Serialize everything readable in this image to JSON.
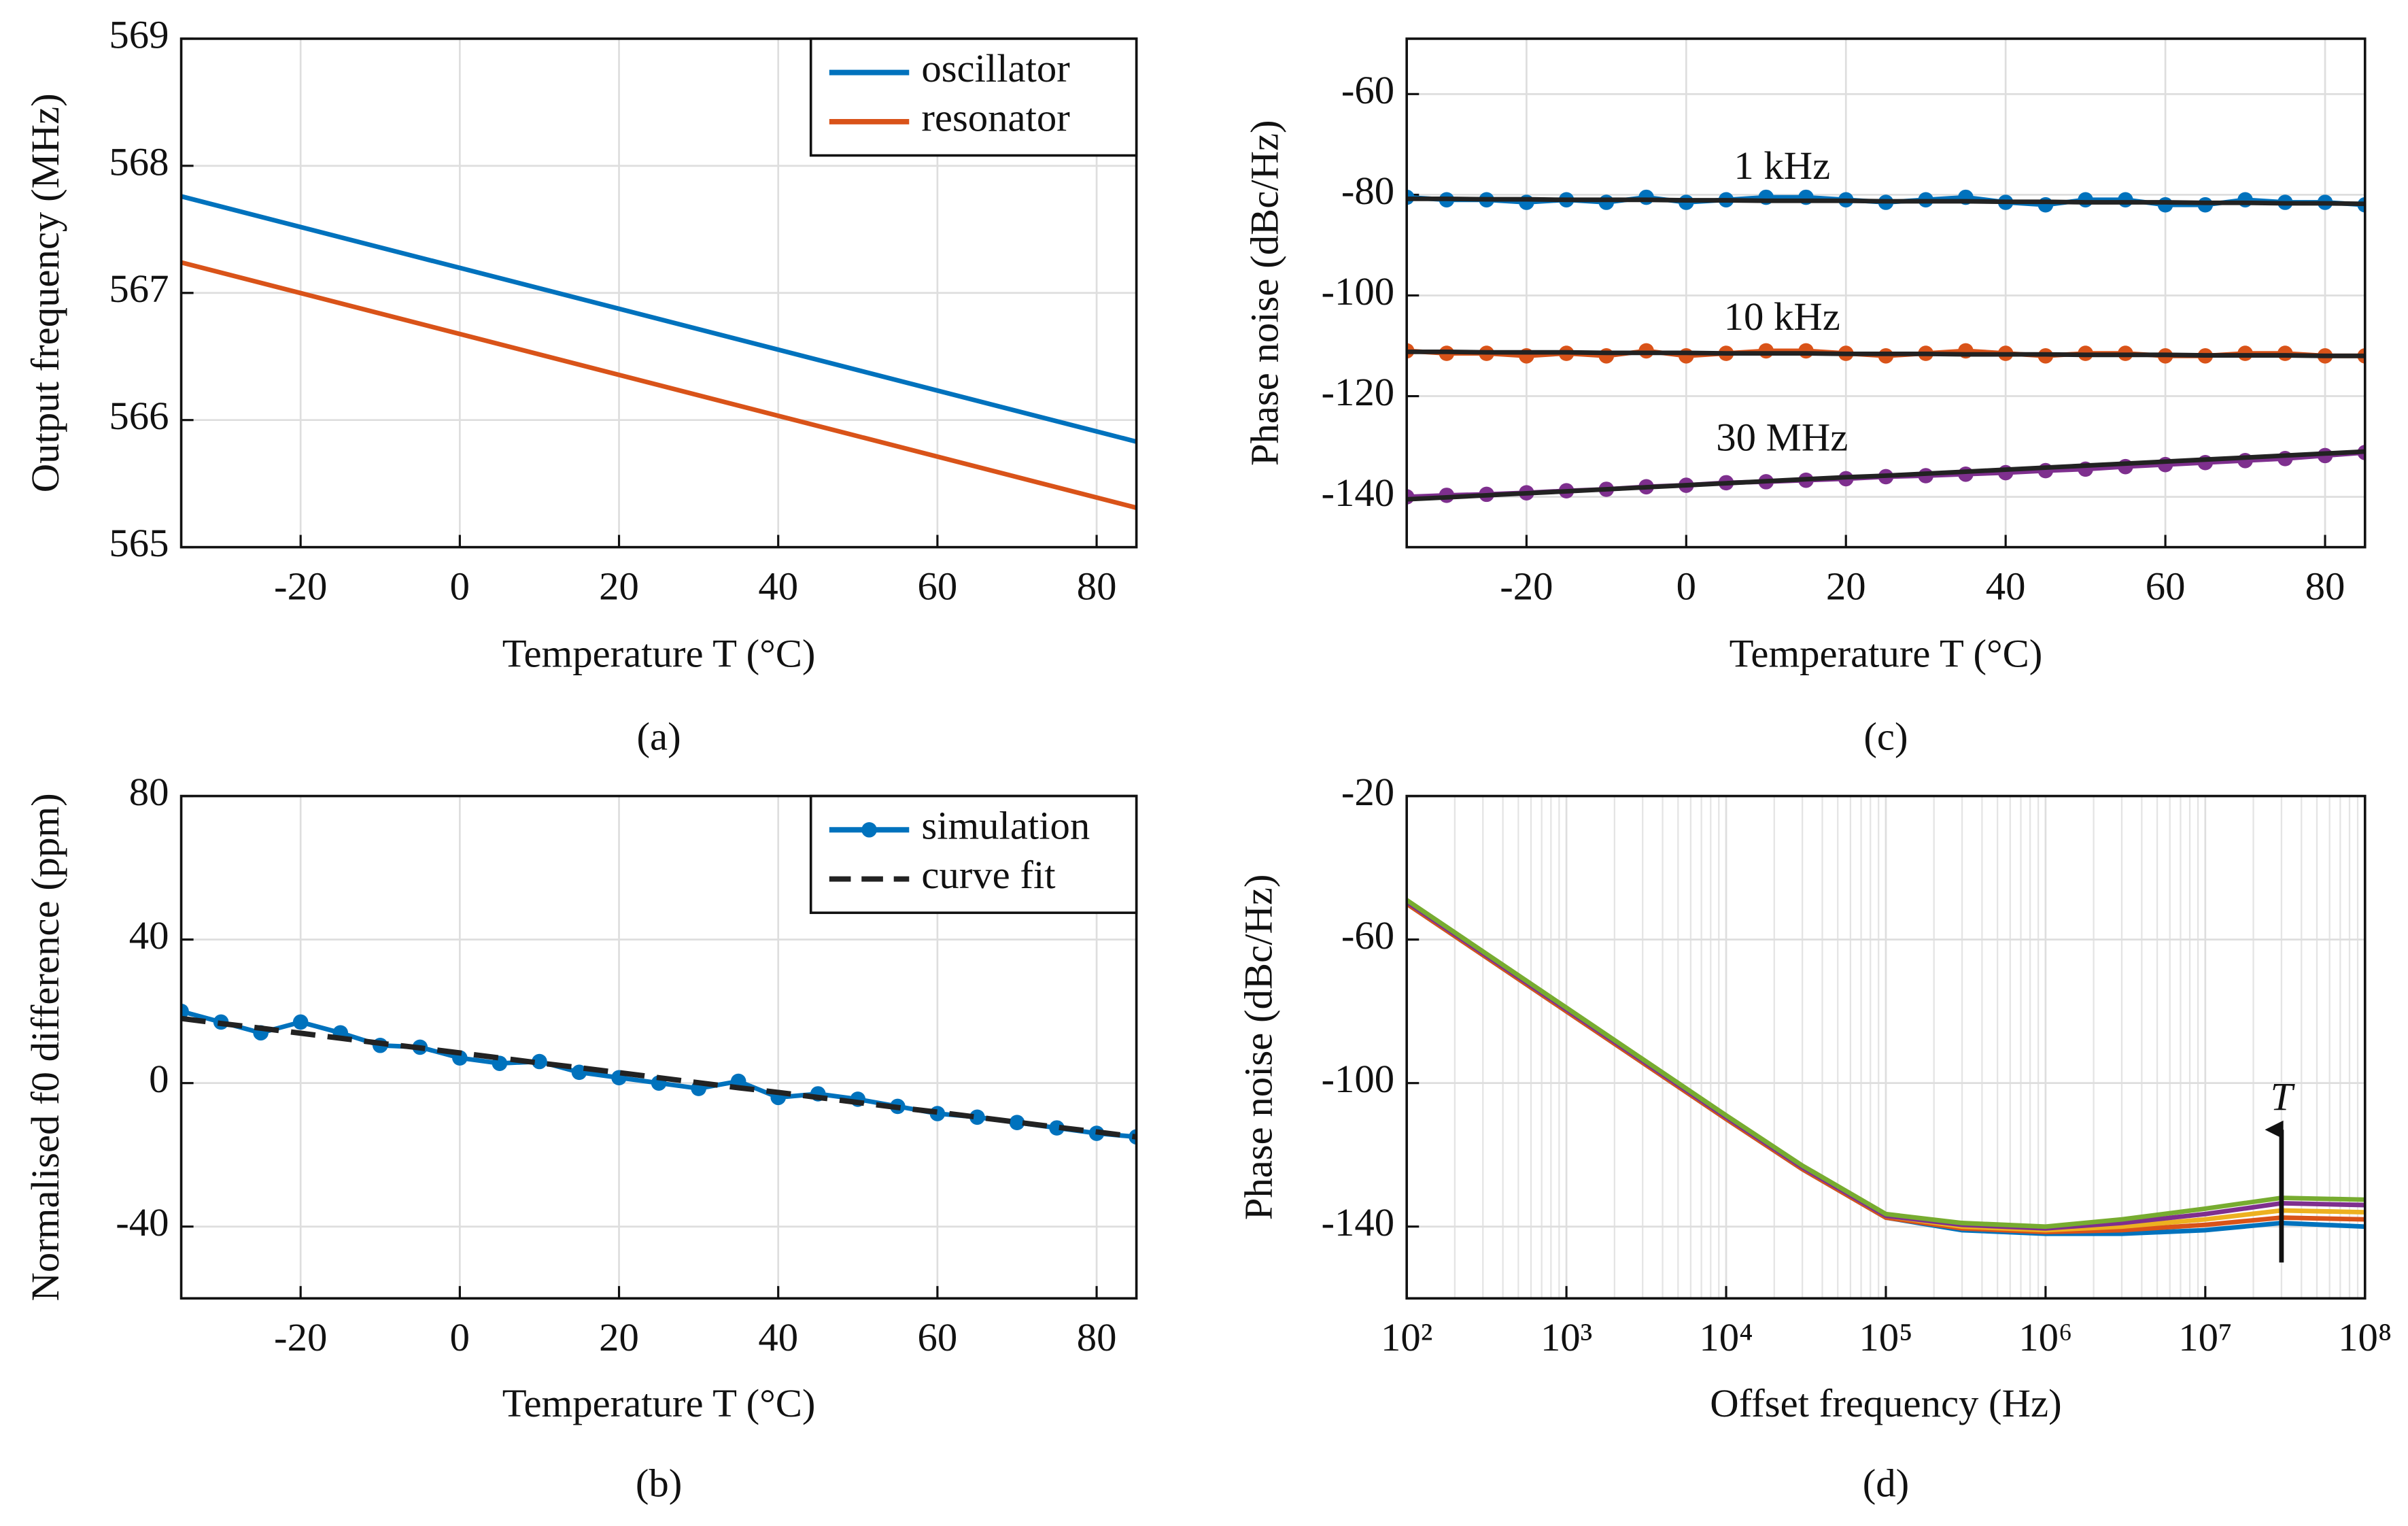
{
  "chart_data": [
    {
      "type": "line",
      "caption": "(a)",
      "x_label": "Temperature T (°C)",
      "y_label": "Output frequency (MHz)",
      "x": [
        -35,
        85
      ],
      "xlim": [
        -35,
        85
      ],
      "xticks": [
        -20,
        0,
        20,
        40,
        60,
        80
      ],
      "ylim": [
        565,
        569
      ],
      "yticks": [
        565,
        566,
        567,
        568,
        569
      ],
      "grid": true,
      "legend": "upper right",
      "series": [
        {
          "name": "oscillator",
          "color": "#0072bd",
          "values": [
            567.76,
            565.83
          ]
        },
        {
          "name": "resonator",
          "color": "#d95319",
          "values": [
            567.24,
            565.31
          ]
        }
      ]
    },
    {
      "type": "line",
      "caption": "(b)",
      "x_label": "Temperature T (°C)",
      "y_label": "Normalised f0 difference (ppm)",
      "x": [
        -35,
        -30,
        -25,
        -20,
        -15,
        -10,
        -5,
        0,
        5,
        10,
        15,
        20,
        25,
        30,
        35,
        40,
        45,
        50,
        55,
        60,
        65,
        70,
        75,
        80,
        85
      ],
      "xlim": [
        -35,
        85
      ],
      "xticks": [
        -20,
        0,
        20,
        40,
        60,
        80
      ],
      "ylim": [
        -60,
        80
      ],
      "yticks": [
        -40,
        0,
        40,
        80
      ],
      "grid": true,
      "legend": "upper right",
      "series": [
        {
          "name": "simulation",
          "color": "#0072bd",
          "marker": "o",
          "values": [
            20,
            17,
            14,
            17,
            14,
            10.5,
            10,
            7,
            5.5,
            6,
            3,
            1.5,
            0,
            -1.5,
            0.5,
            -4,
            -3,
            -4.5,
            -6.5,
            -8.5,
            -9.5,
            -11,
            -12.5,
            -14,
            -15
          ]
        },
        {
          "name": "curve fit",
          "color": "#222222",
          "dash": true,
          "values": [
            18,
            16.6,
            15.3,
            13.9,
            12.5,
            11.1,
            9.8,
            8.4,
            7,
            5.6,
            4.3,
            2.9,
            1.5,
            0.1,
            -1.3,
            -2.6,
            -4,
            -5.4,
            -6.8,
            -8.1,
            -9.5,
            -10.9,
            -12.3,
            -13.6,
            -15
          ]
        }
      ]
    },
    {
      "type": "line",
      "caption": "(c)",
      "x_label": "Temperature T (°C)",
      "y_label": "Phase noise (dBc/Hz)",
      "x": [
        -35,
        -30,
        -25,
        -20,
        -15,
        -10,
        -5,
        0,
        5,
        10,
        15,
        20,
        25,
        30,
        35,
        40,
        45,
        50,
        55,
        60,
        65,
        70,
        75,
        80,
        85
      ],
      "xlim": [
        -35,
        85
      ],
      "xticks": [
        -20,
        0,
        20,
        40,
        60,
        80
      ],
      "ylim": [
        -150,
        -49
      ],
      "yticks": [
        -140,
        -120,
        -100,
        -80,
        -60
      ],
      "grid": true,
      "series": [
        {
          "color": "#0072bd",
          "marker": "o",
          "values": [
            -80.5,
            -81,
            -81,
            -81.5,
            -81,
            -81.5,
            -80.5,
            -81.5,
            -81,
            -80.5,
            -80.5,
            -81,
            -81.5,
            -81,
            -80.5,
            -81.5,
            -82,
            -81,
            -81,
            -82,
            -82,
            -81,
            -81.5,
            -81.5,
            -82
          ]
        },
        {
          "color": "#d95319",
          "marker": "o",
          "values": [
            -111,
            -111.5,
            -111.5,
            -112,
            -111.5,
            -112,
            -111,
            -112,
            -111.5,
            -111,
            -111,
            -111.5,
            -112,
            -111.5,
            -111,
            -111.5,
            -112,
            -111.5,
            -111.5,
            -112,
            -112,
            -111.5,
            -111.5,
            -112,
            -112
          ]
        },
        {
          "color": "#7e2f8e",
          "marker": "o",
          "values": [
            -140,
            -139.7,
            -139.5,
            -139.2,
            -138.8,
            -138.5,
            -138,
            -137.7,
            -137.2,
            -137,
            -136.7,
            -136.4,
            -136,
            -135.8,
            -135.5,
            -135.2,
            -134.8,
            -134.5,
            -134,
            -133.6,
            -133.2,
            -132.8,
            -132.4,
            -131.8,
            -131.2
          ]
        },
        {
          "color": "#222222",
          "values": [
            -80.8,
            -80.8,
            -80.9,
            -80.9,
            -81,
            -81,
            -81,
            -81.1,
            -81.1,
            -81.2,
            -81.2,
            -81.2,
            -81.3,
            -81.3,
            -81.3,
            -81.4,
            -81.4,
            -81.5,
            -81.5,
            -81.5,
            -81.6,
            -81.6,
            -81.7,
            -81.7,
            -81.8
          ]
        },
        {
          "color": "#222222",
          "values": [
            -111.2,
            -111.2,
            -111.3,
            -111.3,
            -111.3,
            -111.4,
            -111.4,
            -111.4,
            -111.5,
            -111.5,
            -111.5,
            -111.6,
            -111.6,
            -111.6,
            -111.7,
            -111.7,
            -111.7,
            -111.8,
            -111.8,
            -111.8,
            -111.9,
            -111.9,
            -111.9,
            -112,
            -112
          ]
        },
        {
          "color": "#222222",
          "values": [
            -140.5,
            -140.1,
            -139.7,
            -139.3,
            -138.9,
            -138.5,
            -138.1,
            -137.7,
            -137.3,
            -136.9,
            -136.5,
            -136.1,
            -135.8,
            -135.4,
            -135,
            -134.6,
            -134.2,
            -133.8,
            -133.4,
            -133,
            -132.6,
            -132.2,
            -131.8,
            -131.4,
            -131
          ]
        }
      ],
      "annotations": [
        {
          "text": "1 kHz",
          "x": 12,
          "y": -75
        },
        {
          "text": "10 kHz",
          "x": 12,
          "y": -105
        },
        {
          "text": "30 MHz",
          "x": 12,
          "y": -129
        }
      ]
    },
    {
      "type": "line",
      "caption": "(d)",
      "x_label": "Offset frequency (Hz)",
      "y_label": "Phase noise (dBc/Hz)",
      "x": [
        100,
        1000,
        10000,
        30000,
        100000,
        300000,
        1000000,
        3000000,
        10000000,
        30000000,
        100000000
      ],
      "xlim": [
        100,
        100000000
      ],
      "xlog": true,
      "minor_grid": true,
      "xticks": [
        {
          "value": 100,
          "label": "10²"
        },
        {
          "value": 1000,
          "label": "10³"
        },
        {
          "value": 10000,
          "label": "10⁴"
        },
        {
          "value": 100000,
          "label": "10⁵"
        },
        {
          "value": 1000000,
          "label": "10⁶"
        },
        {
          "value": 10000000,
          "label": "10⁷"
        },
        {
          "value": 100000000,
          "label": "10⁸"
        }
      ],
      "ylim": [
        -160,
        -20
      ],
      "yticks": [
        -140,
        -100,
        -60,
        -20
      ],
      "grid": true,
      "series": [
        {
          "color": "#0072bd",
          "values": [
            -50,
            -80,
            -110,
            -124,
            -137.5,
            -141,
            -142,
            -142,
            -141,
            -139,
            -140
          ]
        },
        {
          "color": "#d95319",
          "values": [
            -50,
            -80,
            -110,
            -124,
            -137.5,
            -140.5,
            -141.5,
            -141,
            -139.5,
            -137.5,
            -138
          ]
        },
        {
          "color": "#edb120",
          "values": [
            -49.5,
            -79.5,
            -109.5,
            -123.5,
            -137,
            -140,
            -141,
            -140,
            -138,
            -135.5,
            -136
          ]
        },
        {
          "color": "#7e2f8e",
          "values": [
            -49.5,
            -79.5,
            -109.5,
            -123.5,
            -137,
            -139.5,
            -140.5,
            -139,
            -136.5,
            -133.5,
            -134
          ]
        },
        {
          "color": "#77ac30",
          "values": [
            -49,
            -79,
            -109,
            -123,
            -136.5,
            -139,
            -140,
            -138,
            -135,
            -132,
            -132.5
          ]
        }
      ],
      "arrow": {
        "x": 30000000,
        "y": [
          -150,
          -113
        ]
      },
      "annotations": [
        {
          "text": "T",
          "x": 30000000,
          "y": -105
        }
      ]
    }
  ]
}
